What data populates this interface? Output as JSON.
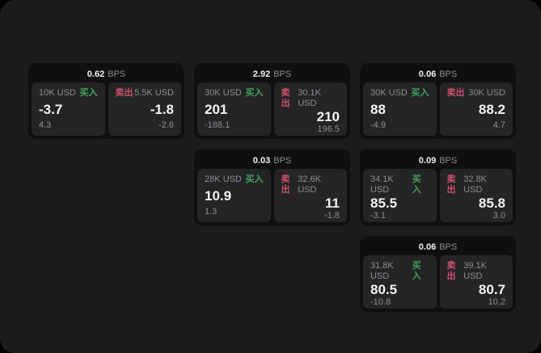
{
  "labels": {
    "bps_suffix": "BPS",
    "buy": "买入",
    "sell": "卖出"
  },
  "colors": {
    "outer_bg": "#000000",
    "panel_bg": "#1b1b1d",
    "card_bg": "#0f0f10",
    "tile_bg": "#242426",
    "text_primary": "#f2f2f2",
    "text_muted": "#8e8e93",
    "buy_green": "#3fa35a",
    "sell_red": "#d04f6a"
  },
  "cards": [
    {
      "bps": "0.62",
      "row": 1,
      "col": 1,
      "buy": {
        "amount": "10K USD",
        "price": "-3.7",
        "delta": "4.3"
      },
      "sell": {
        "amount": "5.5K USD",
        "price": "-1.8",
        "delta": "-2.6"
      }
    },
    {
      "bps": "2.92",
      "row": 1,
      "col": 2,
      "buy": {
        "amount": "30K USD",
        "price": "201",
        "delta": "-188.1"
      },
      "sell": {
        "amount": "30.1K USD",
        "price": "210",
        "delta": "196.5"
      }
    },
    {
      "bps": "0.06",
      "row": 1,
      "col": 3,
      "buy": {
        "amount": "30K USD",
        "price": "88",
        "delta": "-4.9"
      },
      "sell": {
        "amount": "30K USD",
        "price": "88.2",
        "delta": "4.7"
      }
    },
    {
      "bps": "0.03",
      "row": 2,
      "col": 2,
      "buy": {
        "amount": "28K USD",
        "price": "10.9",
        "delta": "1.3"
      },
      "sell": {
        "amount": "32.6K USD",
        "price": "11",
        "delta": "-1.8"
      }
    },
    {
      "bps": "0.09",
      "row": 2,
      "col": 3,
      "buy": {
        "amount": "34.1K USD",
        "price": "85.5",
        "delta": "-3.1"
      },
      "sell": {
        "amount": "32.8K USD",
        "price": "85.8",
        "delta": "3.0"
      }
    },
    {
      "bps": "0.06",
      "row": 3,
      "col": 3,
      "buy": {
        "amount": "31.8K USD",
        "price": "80.5",
        "delta": "-10.8"
      },
      "sell": {
        "amount": "39.1K USD",
        "price": "80.7",
        "delta": "10.2"
      }
    }
  ]
}
